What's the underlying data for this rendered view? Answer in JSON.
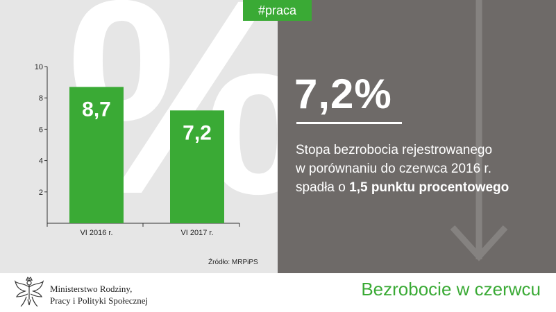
{
  "tag": "#praca",
  "decor_percent": "%",
  "headline": "7,2%",
  "description": {
    "line1": "Stopa bezrobocia rejestrowanego",
    "line2": "w porównaniu do czerwca 2016 r.",
    "line3_prefix": "spadła o ",
    "line3_strong": "1,5 punktu procentowego"
  },
  "source": "Źródło: MRPiPS",
  "ministry": {
    "line1": "Ministerstwo Rodziny,",
    "line2": "Pracy i Polityki Społecznej"
  },
  "footer_title": "Bezrobocie w czerwcu",
  "colors": {
    "accent_green": "#3aaa35",
    "left_panel": "#e6e6e6",
    "right_panel": "#6e6a68",
    "arrow": "#858280"
  },
  "icons": {
    "emblem": "polish-eagle-icon",
    "arrow": "arrow-down-icon"
  },
  "chart_data": {
    "type": "bar",
    "categories": [
      "VI 2016 r.",
      "VI 2017 r."
    ],
    "values": [
      8.7,
      7.2
    ],
    "value_labels": [
      "8,7",
      "7,2"
    ],
    "ylim": [
      0,
      10
    ],
    "yticks": [
      2,
      4,
      6,
      8,
      10
    ],
    "title": "",
    "xlabel": "",
    "ylabel": "",
    "grid": false
  }
}
